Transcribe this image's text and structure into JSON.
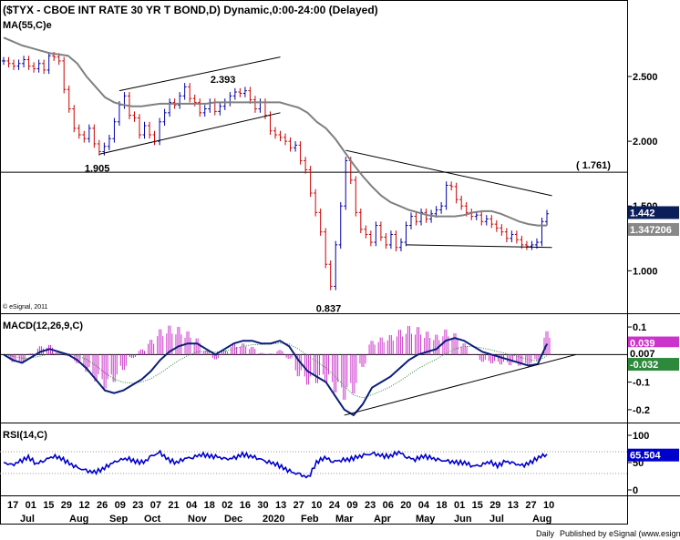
{
  "chart_data": {
    "type": "line",
    "title": "($TYX - CBOE INT RATE 30 YR T BOND,D) Dynamic,0:00-24:00 (Delayed)",
    "copyright": "© eSignal, 2011",
    "footer_left": "Daily",
    "footer_right": "Published by eSignal (www.esignal.com)",
    "x_day_labels": [
      "17",
      "01",
      "15",
      "29",
      "12",
      "26",
      "09",
      "23",
      "07",
      "21",
      "04",
      "18",
      "02",
      "16",
      "30",
      "13",
      "27",
      "10",
      "24",
      "09",
      "23",
      "06",
      "20",
      "04",
      "18",
      "01",
      "15",
      "29",
      "13",
      "27",
      "10"
    ],
    "x_month_labels": [
      "Jul",
      "Aug",
      "Sep",
      "Oct",
      "Nov",
      "Dec",
      "2020",
      "Feb",
      "Mar",
      "Apr",
      "May",
      "Jun",
      "Jul",
      "Aug"
    ],
    "price": {
      "indicator": "MA(55,C)e",
      "y_ticks": [
        "2.500",
        "2.000",
        "1.500",
        "1.000"
      ],
      "ylim": [
        0.7,
        2.95
      ],
      "close": [
        2.62,
        2.6,
        2.58,
        2.6,
        2.63,
        2.58,
        2.56,
        2.6,
        2.55,
        2.66,
        2.65,
        2.62,
        2.4,
        2.25,
        2.1,
        2.05,
        2.02,
        2.1,
        1.98,
        1.92,
        1.96,
        2.02,
        2.15,
        2.28,
        2.35,
        2.2,
        2.18,
        2.05,
        2.12,
        2.05,
        2.0,
        2.15,
        2.22,
        2.3,
        2.28,
        2.35,
        2.42,
        2.33,
        2.3,
        2.22,
        2.25,
        2.3,
        2.23,
        2.27,
        2.3,
        2.35,
        2.38,
        2.37,
        2.39,
        2.32,
        2.25,
        2.3,
        2.2,
        2.08,
        2.05,
        2.03,
        2.0,
        1.95,
        1.97,
        1.85,
        1.78,
        1.6,
        1.45,
        1.3,
        1.05,
        0.88,
        1.2,
        1.5,
        1.85,
        1.7,
        1.45,
        1.32,
        1.28,
        1.22,
        1.35,
        1.26,
        1.2,
        1.28,
        1.18,
        1.22,
        1.35,
        1.42,
        1.38,
        1.45,
        1.4,
        1.44,
        1.47,
        1.5,
        1.66,
        1.65,
        1.55,
        1.5,
        1.45,
        1.42,
        1.43,
        1.38,
        1.4,
        1.36,
        1.33,
        1.3,
        1.25,
        1.28,
        1.24,
        1.2,
        1.19,
        1.2,
        1.22,
        1.38,
        1.44
      ],
      "ma": [
        2.8,
        2.77,
        2.74,
        2.72,
        2.7,
        2.68,
        2.67,
        2.66,
        2.6,
        2.5,
        2.42,
        2.34,
        2.3,
        2.28,
        2.27,
        2.27,
        2.28,
        2.29,
        2.29,
        2.29,
        2.29,
        2.29,
        2.29,
        2.3,
        2.3,
        2.3,
        2.3,
        2.3,
        2.3,
        2.3,
        2.3,
        2.28,
        2.26,
        2.22,
        2.15,
        2.1,
        2.02,
        1.92,
        1.82,
        1.73,
        1.65,
        1.58,
        1.53,
        1.5,
        1.47,
        1.45,
        1.43,
        1.42,
        1.42,
        1.42,
        1.43,
        1.45,
        1.46,
        1.46,
        1.44,
        1.41,
        1.38,
        1.36,
        1.35,
        1.35
      ],
      "current_value": "1.442",
      "ma_value": "1.347206",
      "resistance_label": "( 1.761)",
      "resistance_value": 1.761,
      "annotations": [
        {
          "label": "2.393",
          "index": 44,
          "value": 2.393
        },
        {
          "label": "1.905",
          "index": 19,
          "value": 1.905
        },
        {
          "label": "0.837",
          "index": 65,
          "value": 0.837
        }
      ]
    },
    "macd": {
      "indicator": "MACD(12,26,9,C)",
      "y_ticks": [
        "0.1",
        "0",
        "-0.1",
        "-0.2"
      ],
      "ylim": [
        -0.24,
        0.13
      ],
      "macd": [
        0.0,
        -0.02,
        -0.03,
        -0.01,
        0.01,
        0.02,
        0.01,
        0.0,
        -0.02,
        -0.05,
        -0.09,
        -0.13,
        -0.14,
        -0.13,
        -0.11,
        -0.09,
        -0.06,
        -0.02,
        0.01,
        0.03,
        0.04,
        0.04,
        0.02,
        0.0,
        0.02,
        0.04,
        0.05,
        0.05,
        0.04,
        0.04,
        0.05,
        0.03,
        -0.02,
        -0.06,
        -0.08,
        -0.1,
        -0.15,
        -0.2,
        -0.22,
        -0.18,
        -0.12,
        -0.1,
        -0.08,
        -0.05,
        -0.02,
        0.0,
        0.01,
        0.02,
        0.05,
        0.06,
        0.05,
        0.03,
        0.01,
        0.0,
        -0.01,
        -0.02,
        -0.03,
        -0.04,
        -0.035,
        0.039
      ],
      "signal_value": "0.007",
      "macd_value": "0.039",
      "hist_value": "-0.032"
    },
    "rsi": {
      "indicator": "RSI(14,C)",
      "y_ticks": [
        "100",
        "50",
        "0"
      ],
      "ylim": [
        0,
        100
      ],
      "upper": 70,
      "lower": 30,
      "values": [
        50,
        45,
        52,
        60,
        48,
        55,
        62,
        58,
        48,
        40,
        35,
        32,
        38,
        48,
        55,
        58,
        52,
        50,
        62,
        68,
        55,
        50,
        58,
        60,
        65,
        62,
        60,
        56,
        58,
        65,
        62,
        58,
        52,
        48,
        40,
        32,
        28,
        22,
        50,
        60,
        52,
        55,
        56,
        60,
        64,
        66,
        62,
        62,
        70,
        60,
        56,
        62,
        58,
        54,
        52,
        50,
        50,
        44,
        46,
        52,
        44,
        52,
        48,
        44,
        50,
        60,
        65.504
      ],
      "current_value": "65.504"
    },
    "colors": {
      "ma_line": "#808080",
      "bull": "#0000aa",
      "bear": "#cc0000",
      "macd": "#0a1e78",
      "signal": "#2d8a3c",
      "hist": "#cc33cc",
      "rsi": "#0000cc",
      "tag_dark": "#0a1e5a",
      "tag_gray": "#888888",
      "tag_magenta": "#cc33cc",
      "tag_green": "#2d8a3c",
      "tag_blue": "#0000cc"
    }
  }
}
